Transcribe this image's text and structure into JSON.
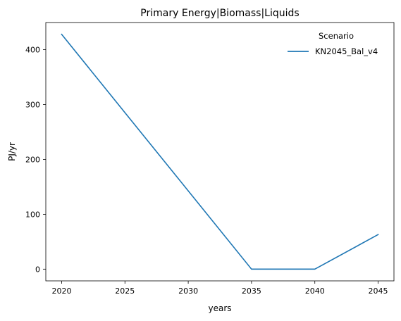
{
  "chart_data": {
    "type": "line",
    "title": "Primary Energy|Biomass|Liquids",
    "xlabel": "years",
    "ylabel": "PJ/yr",
    "x": [
      2020,
      2025,
      2030,
      2035,
      2040,
      2045
    ],
    "xlim": [
      2018.75,
      2046.25
    ],
    "ylim": [
      -21.4,
      449.5
    ],
    "x_ticks": [
      "2020",
      "2025",
      "2030",
      "2035",
      "2040",
      "2045"
    ],
    "y_ticks": [
      "0",
      "100",
      "200",
      "300",
      "400"
    ],
    "grid": false,
    "legend": {
      "title": "Scenario",
      "placement": "top-right"
    },
    "series": [
      {
        "name": "KN2045_Bal_v4",
        "color": "#1f77b4",
        "values": [
          428,
          285.3,
          142.7,
          0,
          0,
          63
        ]
      }
    ]
  }
}
